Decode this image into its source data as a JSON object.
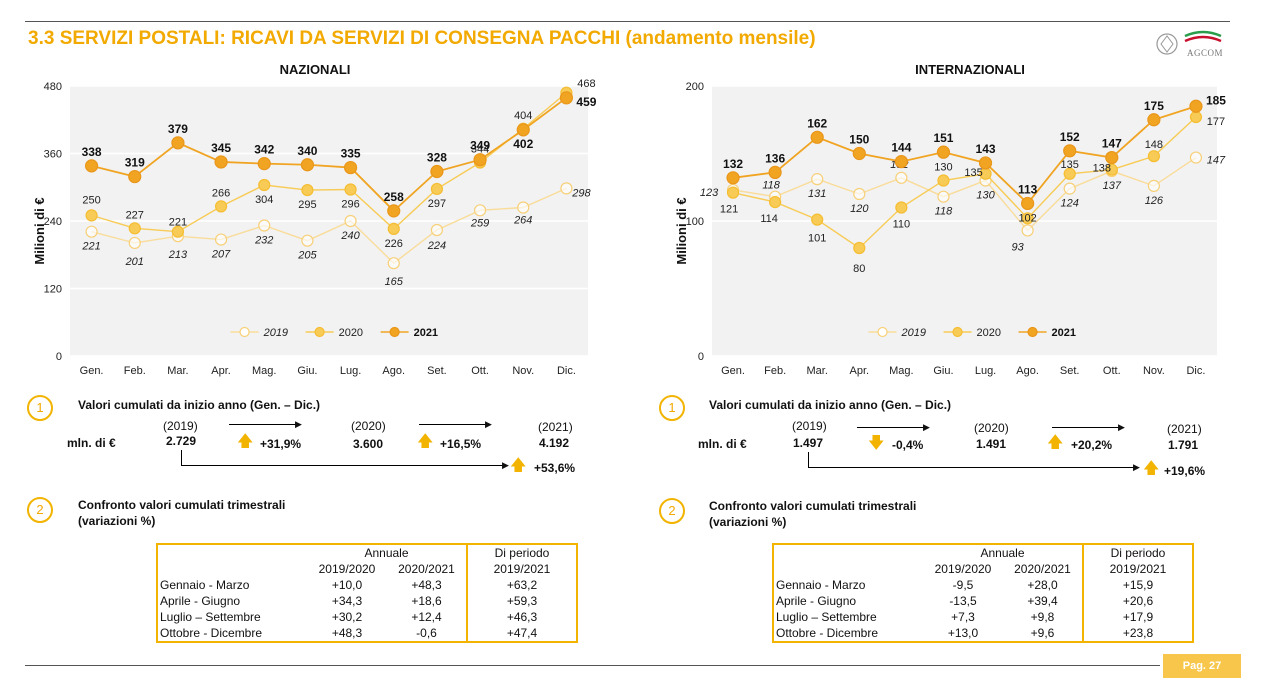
{
  "page": {
    "title": "3.3 SERVIZI POSTALI: RICAVI DA SERVIZI DI CONSEGNA PACCHI (andamento mensile)",
    "logo_text": "AGCOM",
    "page_number": "Pag. 27"
  },
  "colors": {
    "accent": "#f2a900",
    "s2019": "#f9dc9a",
    "s2020": "#f7cb55",
    "s2021": "#f0a422",
    "plot_bg": "#f2f2f2"
  },
  "chart_data": [
    {
      "type": "line",
      "title": "NAZIONALI",
      "ylabel": "Milioni di €",
      "x": [
        "Gen.",
        "Feb.",
        "Mar.",
        "Apr.",
        "Mag.",
        "Giu.",
        "Lug.",
        "Ago.",
        "Set.",
        "Ott.",
        "Nov.",
        "Dic."
      ],
      "ylim": [
        0,
        480
      ],
      "yticks": [
        0,
        120,
        240,
        360,
        480
      ],
      "grid": true,
      "legend": "bottom-center",
      "series": [
        {
          "name": "2019",
          "values": [
            221,
            201,
            213,
            207,
            232,
            205,
            240,
            165,
            224,
            259,
            264,
            298
          ]
        },
        {
          "name": "2020",
          "values": [
            250,
            227,
            221,
            266,
            304,
            295,
            296,
            226,
            297,
            344,
            404,
            468
          ]
        },
        {
          "name": "2021",
          "values": [
            338,
            319,
            379,
            345,
            342,
            340,
            335,
            258,
            328,
            349,
            402,
            459
          ]
        }
      ]
    },
    {
      "type": "line",
      "title": "INTERNAZIONALI",
      "ylabel": "Milioni di €",
      "x": [
        "Gen.",
        "Feb.",
        "Mar.",
        "Apr.",
        "Mag.",
        "Giu.",
        "Lug.",
        "Ago.",
        "Set.",
        "Ott.",
        "Nov.",
        "Dic."
      ],
      "ylim": [
        0,
        200
      ],
      "yticks": [
        0,
        100,
        200
      ],
      "grid": true,
      "legend": "bottom-center",
      "series": [
        {
          "name": "2019",
          "values": [
            123,
            118,
            131,
            120,
            132,
            118,
            130,
            93,
            124,
            137,
            126,
            147
          ]
        },
        {
          "name": "2020",
          "values": [
            121,
            114,
            101,
            80,
            110,
            130,
            135,
            102,
            135,
            138,
            148,
            177
          ]
        },
        {
          "name": "2021",
          "values": [
            132,
            136,
            162,
            150,
            144,
            151,
            143,
            113,
            152,
            147,
            175,
            185
          ]
        }
      ]
    }
  ],
  "left": {
    "section1_num": "1",
    "section1_title": "Valori cumulati da inizio anno (Gen. – Dic.)",
    "unit": "mln. di €",
    "y2019_label": "(2019)",
    "y2019_value": "2.729",
    "y2020_label": "(2020)",
    "y2020_value": "3.600",
    "y2021_label": "(2021)",
    "y2021_value": "4.192",
    "var_1920": "+31,9%",
    "var_2021": "+16,5%",
    "var_1921": "+53,6%",
    "section2_num": "2",
    "section2_title": "Confronto valori cumulati trimestrali",
    "section2_sub": "(variazioni %)",
    "table": {
      "header_annuale": "Annuale",
      "header_periodo": "Di periodo",
      "col1": "2019/2020",
      "col2": "2020/2021",
      "col3": "2019/2021",
      "rows": [
        {
          "label": "Gennaio - Marzo",
          "a": "+10,0",
          "b": "+48,3",
          "c": "+63,2"
        },
        {
          "label": "Aprile - Giugno",
          "a": "+34,3",
          "b": "+18,6",
          "c": "+59,3"
        },
        {
          "label": "Luglio – Settembre",
          "a": "+30,2",
          "b": "+12,4",
          "c": "+46,3"
        },
        {
          "label": "Ottobre - Dicembre",
          "a": "+48,3",
          "b": "-0,6",
          "c": "+47,4"
        }
      ]
    }
  },
  "right": {
    "section1_num": "1",
    "section1_title": "Valori cumulati da inizio anno (Gen. – Dic.)",
    "unit": "mln. di €",
    "y2019_label": "(2019)",
    "y2019_value": "1.497",
    "y2020_label": "(2020)",
    "y2020_value": "1.491",
    "y2021_label": "(2021)",
    "y2021_value": "1.791",
    "var_1920": "-0,4%",
    "var_2021": "+20,2%",
    "var_1921": "+19,6%",
    "section2_num": "2",
    "section2_title": "Confronto valori cumulati trimestrali",
    "section2_sub": "(variazioni %)",
    "table": {
      "header_annuale": "Annuale",
      "header_periodo": "Di periodo",
      "col1": "2019/2020",
      "col2": "2020/2021",
      "col3": "2019/2021",
      "rows": [
        {
          "label": "Gennaio - Marzo",
          "a": "-9,5",
          "b": "+28,0",
          "c": "+15,9"
        },
        {
          "label": "Aprile - Giugno",
          "a": "-13,5",
          "b": "+39,4",
          "c": "+20,6"
        },
        {
          "label": "Luglio – Settembre",
          "a": "+7,3",
          "b": "+9,8",
          "c": "+17,9"
        },
        {
          "label": "Ottobre - Dicembre",
          "a": "+13,0",
          "b": "+9,6",
          "c": "+23,8"
        }
      ]
    }
  }
}
